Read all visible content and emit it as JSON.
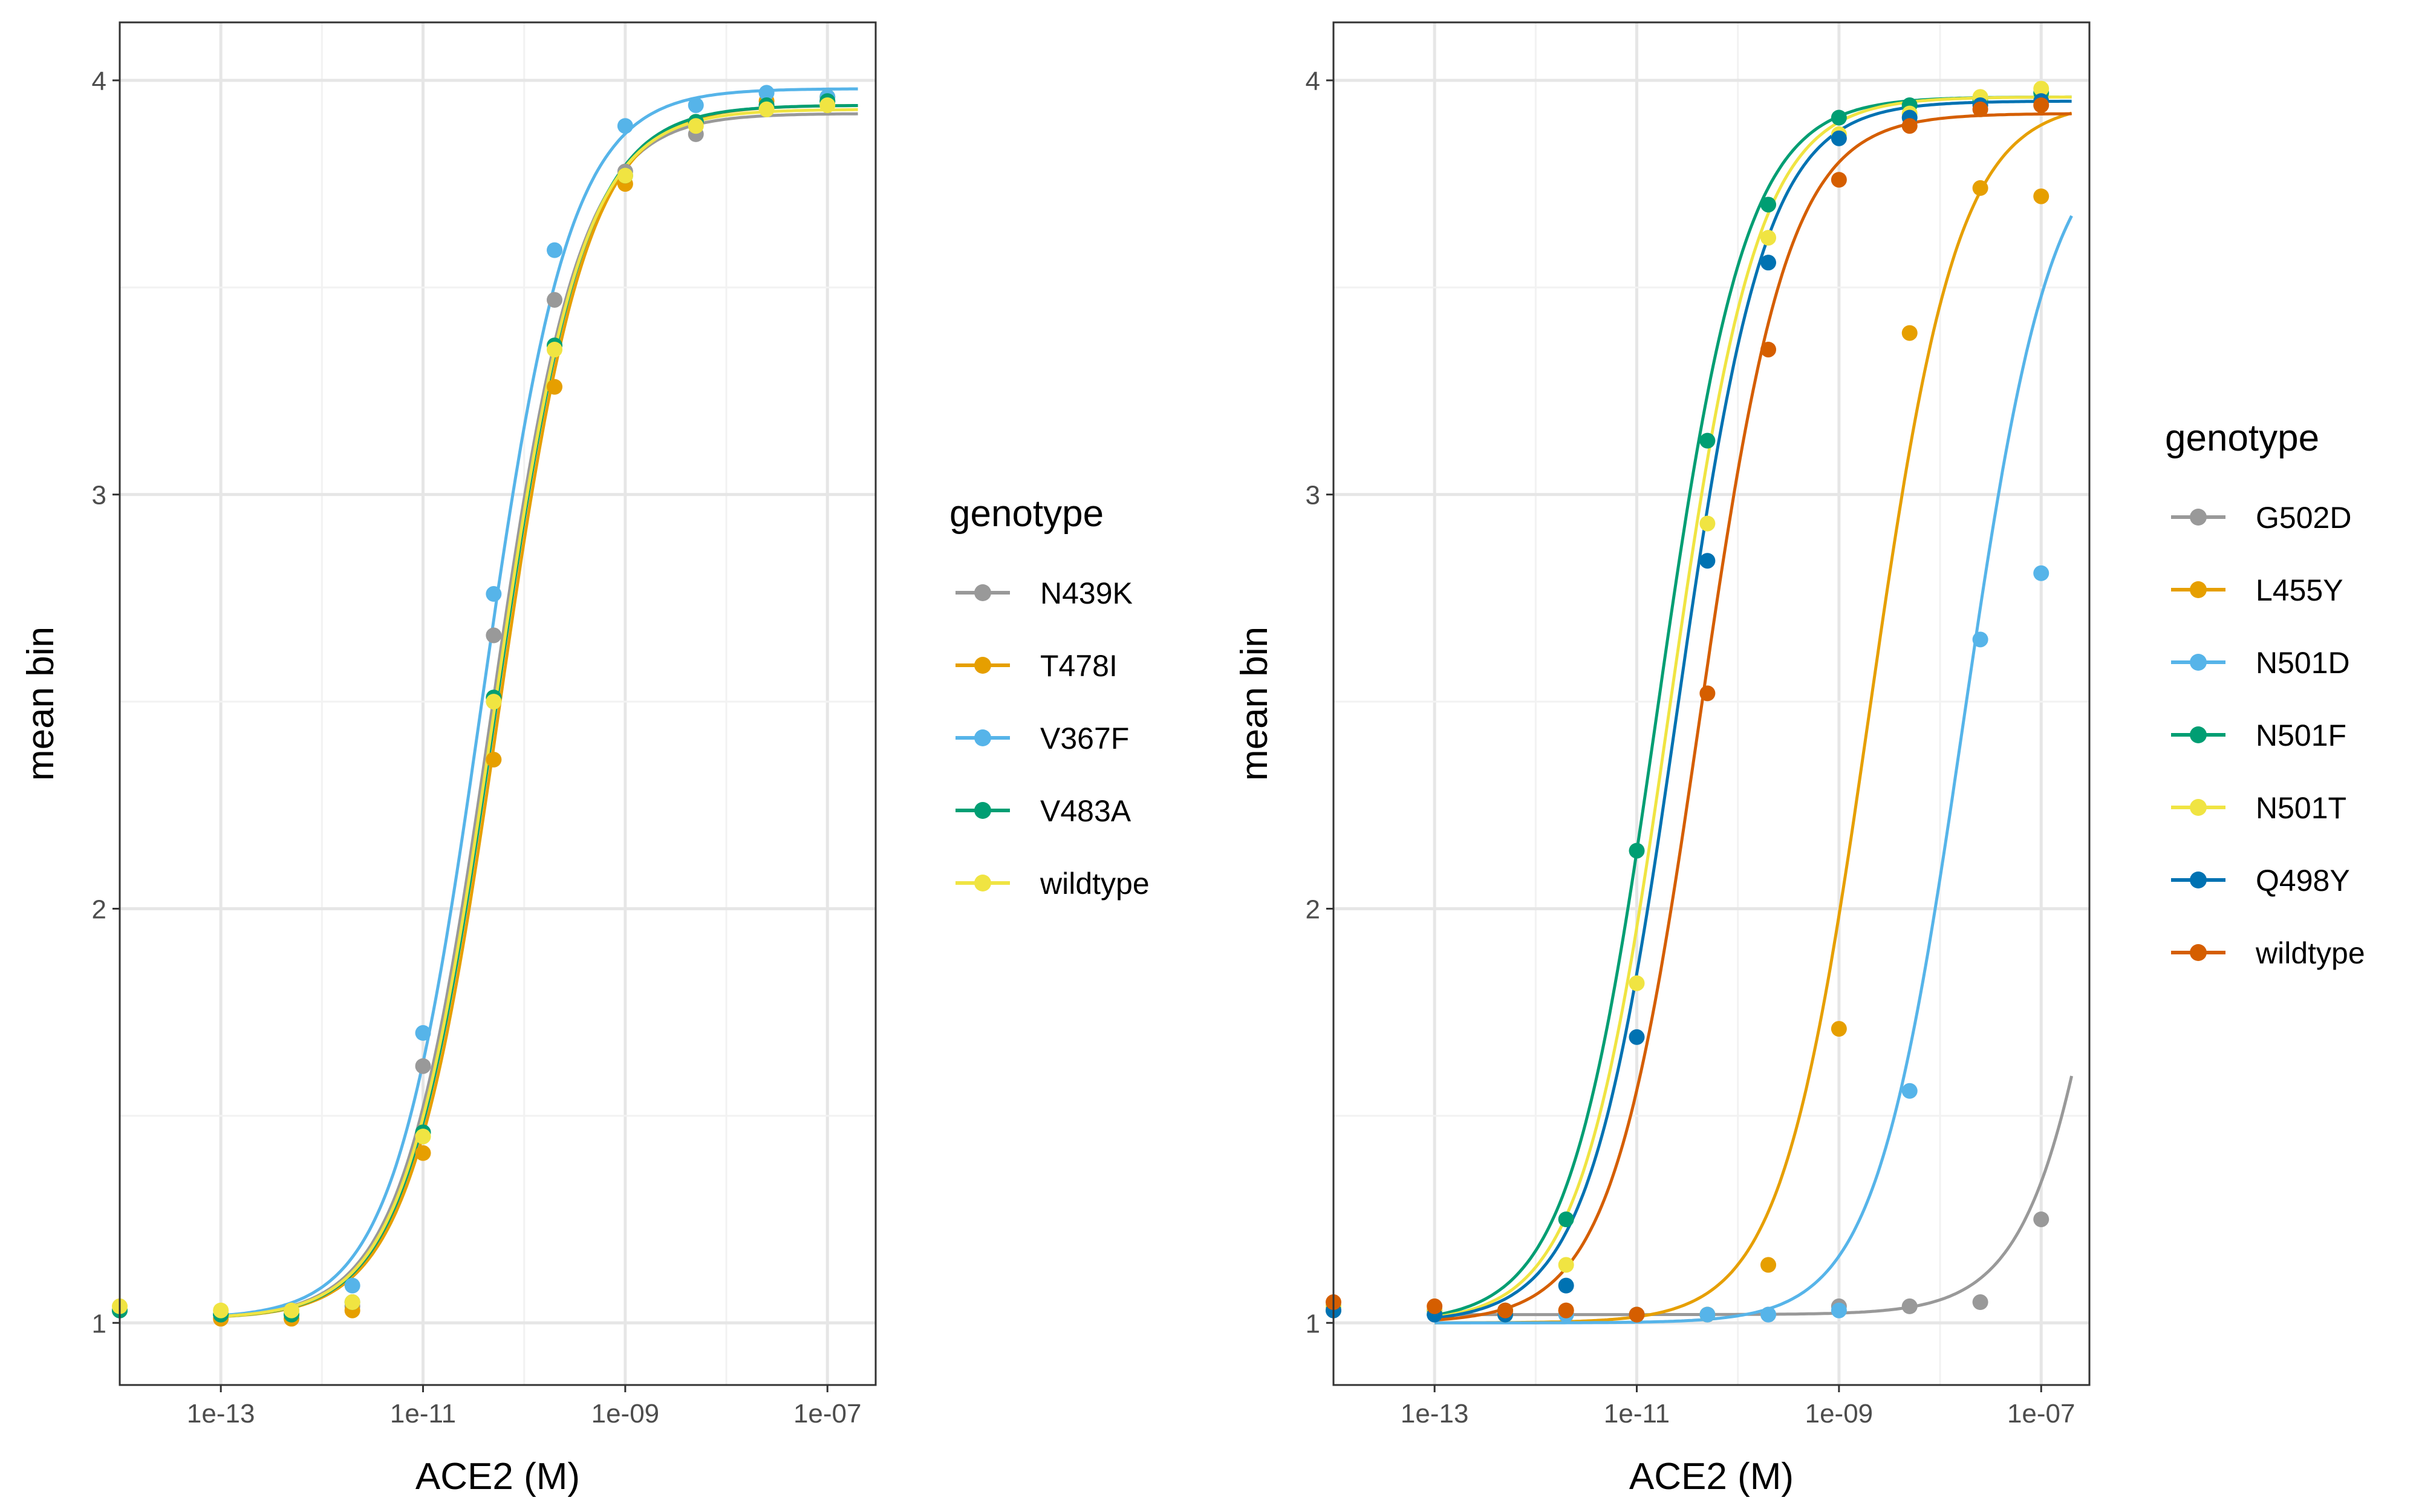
{
  "chart_data": [
    {
      "type": "scatter",
      "subtype": "dose-response points with fitted sigmoid curves",
      "xlabel": "ACE2 (M)",
      "ylabel": "mean bin",
      "x_scale": "log10",
      "xlim": [
        1e-14,
        3e-07
      ],
      "ylim": [
        0.85,
        4.14
      ],
      "x_ticks": [
        1e-13,
        1e-11,
        1e-09,
        1e-07
      ],
      "x_tick_labels": [
        "1e-13",
        "1e-11",
        "1e-09",
        "1e-07"
      ],
      "y_ticks": [
        1,
        2,
        3,
        4
      ],
      "y_tick_labels": [
        "1",
        "2",
        "3",
        "4"
      ],
      "grid": true,
      "legend_title": "genotype",
      "legend_position": "right",
      "x": [
        1e-14,
        1e-13,
        5e-13,
        2e-12,
        1e-11,
        5e-11,
        2e-10,
        1e-09,
        5e-09,
        2.5e-08,
        1e-07
      ],
      "series": [
        {
          "name": "N439K",
          "color": "#999999",
          "ec50": 4.7e-11,
          "bottom": 1.01,
          "top": 3.92,
          "hill": 1.0,
          "values": [
            1.03,
            1.02,
            1.02,
            1.04,
            1.62,
            2.66,
            3.47,
            3.78,
            3.87,
            3.94,
            3.95
          ]
        },
        {
          "name": "T478I",
          "color": "#E69F00",
          "ec50": 5.6e-11,
          "bottom": 1.01,
          "top": 3.94,
          "hill": 1.0,
          "values": [
            1.03,
            1.01,
            1.01,
            1.03,
            1.41,
            2.36,
            3.26,
            3.75,
            3.9,
            3.95,
            3.96
          ]
        },
        {
          "name": "V367F",
          "color": "#56B4E9",
          "ec50": 3.8e-11,
          "bottom": 1.01,
          "top": 3.98,
          "hill": 1.0,
          "values": [
            1.03,
            1.02,
            1.03,
            1.09,
            1.7,
            2.76,
            3.59,
            3.89,
            3.94,
            3.97,
            3.96
          ]
        },
        {
          "name": "V483A",
          "color": "#009E73",
          "ec50": 5.2e-11,
          "bottom": 1.01,
          "top": 3.94,
          "hill": 1.0,
          "values": [
            1.03,
            1.02,
            1.02,
            1.05,
            1.46,
            2.51,
            3.36,
            3.77,
            3.9,
            3.94,
            3.95
          ]
        },
        {
          "name": "wildtype",
          "color": "#F0E442",
          "ec50": 5e-11,
          "bottom": 1.01,
          "top": 3.93,
          "hill": 1.0,
          "values": [
            1.04,
            1.03,
            1.03,
            1.05,
            1.45,
            2.5,
            3.35,
            3.77,
            3.89,
            3.93,
            3.94
          ]
        }
      ]
    },
    {
      "type": "scatter",
      "subtype": "dose-response points with fitted sigmoid curves",
      "xlabel": "ACE2 (M)",
      "ylabel": "mean bin",
      "x_scale": "log10",
      "xlim": [
        1e-14,
        3e-07
      ],
      "ylim": [
        0.85,
        4.14
      ],
      "x_ticks": [
        1e-13,
        1e-11,
        1e-09,
        1e-07
      ],
      "x_tick_labels": [
        "1e-13",
        "1e-11",
        "1e-09",
        "1e-07"
      ],
      "y_ticks": [
        1,
        2,
        3,
        4
      ],
      "y_tick_labels": [
        "1",
        "2",
        "3",
        "4"
      ],
      "grid": true,
      "legend_title": "genotype",
      "legend_position": "right",
      "x": [
        1e-14,
        1e-13,
        5e-13,
        2e-12,
        1e-11,
        5e-11,
        2e-10,
        1e-09,
        5e-09,
        2.5e-08,
        1e-07
      ],
      "series": [
        {
          "name": "G502D",
          "color": "#999999",
          "ec50": 8e-07,
          "bottom": 1.02,
          "top": 3.9,
          "hill": 1.0,
          "values": [
            1.03,
            1.02,
            1.02,
            1.02,
            1.02,
            1.02,
            1.02,
            1.04,
            1.04,
            1.05,
            1.25
          ]
        },
        {
          "name": "L455Y",
          "color": "#E69F00",
          "ec50": 2e-09,
          "bottom": 1.0,
          "top": 3.95,
          "hill": 1.0,
          "values": [
            1.04,
            1.03,
            1.02,
            1.03,
            1.02,
            1.02,
            1.14,
            1.71,
            3.39,
            3.74,
            3.72
          ]
        },
        {
          "name": "N501D",
          "color": "#56B4E9",
          "ec50": 1.7e-08,
          "bottom": 1.0,
          "top": 3.9,
          "hill": 1.0,
          "values": [
            1.04,
            1.03,
            1.02,
            1.02,
            1.02,
            1.02,
            1.02,
            1.03,
            1.56,
            2.65,
            2.81
          ]
        },
        {
          "name": "N501F",
          "color": "#009E73",
          "ec50": 1.6e-11,
          "bottom": 1.0,
          "top": 3.96,
          "hill": 1.0,
          "values": [
            1.04,
            1.03,
            1.03,
            1.25,
            2.14,
            3.13,
            3.7,
            3.91,
            3.94,
            3.95,
            3.97
          ]
        },
        {
          "name": "N501T",
          "color": "#F0E442",
          "ec50": 2.1e-11,
          "bottom": 1.0,
          "top": 3.96,
          "hill": 1.0,
          "values": [
            1.04,
            1.03,
            1.02,
            1.14,
            1.82,
            2.93,
            3.62,
            3.87,
            3.92,
            3.96,
            3.98
          ]
        },
        {
          "name": "Q498Y",
          "color": "#0072B2",
          "ec50": 2.5e-11,
          "bottom": 1.0,
          "top": 3.95,
          "hill": 1.0,
          "values": [
            1.03,
            1.02,
            1.02,
            1.09,
            1.69,
            2.84,
            3.56,
            3.86,
            3.91,
            3.94,
            3.95
          ]
        },
        {
          "name": "wildtype",
          "color": "#D55E00",
          "ec50": 4.2e-11,
          "bottom": 1.0,
          "top": 3.92,
          "hill": 1.0,
          "values": [
            1.05,
            1.04,
            1.03,
            1.03,
            1.02,
            2.52,
            3.35,
            3.76,
            3.89,
            3.93,
            3.94
          ]
        }
      ]
    }
  ]
}
